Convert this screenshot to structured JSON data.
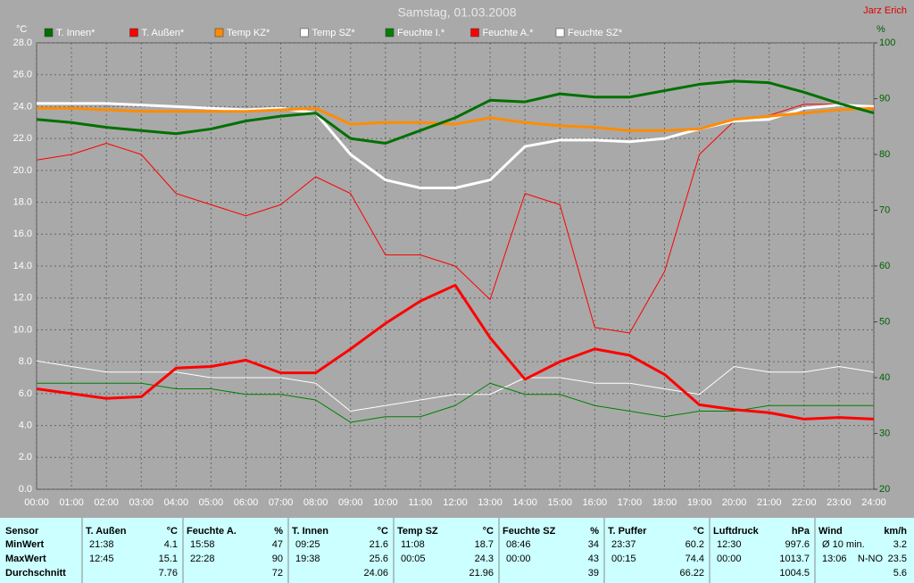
{
  "chart_data": {
    "type": "line",
    "title": "Samstag, 01.03.2008",
    "author": "Jarz Erich",
    "y_label": "°C",
    "y2_label": "%",
    "x": [
      0,
      1,
      2,
      3,
      4,
      5,
      6,
      7,
      8,
      9,
      10,
      11,
      12,
      13,
      14,
      15,
      16,
      17,
      18,
      19,
      20,
      21,
      22,
      23,
      24
    ],
    "xlim": [
      0,
      24
    ],
    "xticks": [
      {
        "value": 0,
        "label": "00:00"
      },
      {
        "value": 1,
        "label": "01:00"
      },
      {
        "value": 2,
        "label": "02:00"
      },
      {
        "value": 3,
        "label": "03:00"
      },
      {
        "value": 4,
        "label": "04:00"
      },
      {
        "value": 5,
        "label": "05:00"
      },
      {
        "value": 6,
        "label": "06:00"
      },
      {
        "value": 7,
        "label": "07:00"
      },
      {
        "value": 8,
        "label": "08:00"
      },
      {
        "value": 9,
        "label": "09:00"
      },
      {
        "value": 10,
        "label": "10:00"
      },
      {
        "value": 11,
        "label": "11:00"
      },
      {
        "value": 12,
        "label": "12:00"
      },
      {
        "value": 13,
        "label": "13:00"
      },
      {
        "value": 14,
        "label": "14:00"
      },
      {
        "value": 15,
        "label": "15:00"
      },
      {
        "value": 16,
        "label": "16:00"
      },
      {
        "value": 17,
        "label": "17:00"
      },
      {
        "value": 18,
        "label": "18:00"
      },
      {
        "value": 19,
        "label": "19:00"
      },
      {
        "value": 20,
        "label": "20:00"
      },
      {
        "value": 21,
        "label": "21:00"
      },
      {
        "value": 22,
        "label": "22:00"
      },
      {
        "value": 23,
        "label": "23:00"
      },
      {
        "value": 24,
        "label": "24:00"
      }
    ],
    "ylim": [
      0,
      28
    ],
    "yticks": [
      {
        "value": 0,
        "label": "0.0"
      },
      {
        "value": 2,
        "label": "2.0"
      },
      {
        "value": 4,
        "label": "4.0"
      },
      {
        "value": 6,
        "label": "6.0"
      },
      {
        "value": 8,
        "label": "8.0"
      },
      {
        "value": 10,
        "label": "10.0"
      },
      {
        "value": 12,
        "label": "12.0"
      },
      {
        "value": 14,
        "label": "14.0"
      },
      {
        "value": 16,
        "label": "16.0"
      },
      {
        "value": 18,
        "label": "18.0"
      },
      {
        "value": 20,
        "label": "20.0"
      },
      {
        "value": 22,
        "label": "22.0"
      },
      {
        "value": 24,
        "label": "24.0"
      },
      {
        "value": 26,
        "label": "26.0"
      },
      {
        "value": 28,
        "label": "28.0"
      }
    ],
    "y2lim": [
      20,
      100
    ],
    "y2ticks": [
      20,
      30,
      40,
      50,
      60,
      70,
      80,
      90,
      100
    ],
    "grid": true,
    "series": [
      {
        "name": "T. Innen*",
        "color": "#007000",
        "line_width": 3,
        "values": [
          23.2,
          23.0,
          22.7,
          22.5,
          22.3,
          22.6,
          23.1,
          23.4,
          23.6,
          22.0,
          21.7,
          22.5,
          23.3,
          24.4,
          24.3,
          24.8,
          24.6,
          24.6,
          25.0,
          25.4,
          25.6,
          25.5,
          24.9,
          24.2,
          23.6
        ]
      },
      {
        "name": "T. Außen*",
        "color": "#ff0000",
        "line_width": 3,
        "values": [
          6.3,
          6.0,
          5.7,
          5.8,
          7.6,
          7.7,
          8.1,
          7.3,
          7.3,
          8.8,
          10.4,
          11.8,
          12.8,
          9.5,
          6.9,
          8.0,
          8.8,
          8.4,
          7.2,
          5.3,
          5.0,
          4.8,
          4.4,
          4.5,
          4.4
        ]
      },
      {
        "name": "Temp KZ*",
        "color": "#ff8c00",
        "line_width": 3,
        "values": [
          23.9,
          23.9,
          23.8,
          23.7,
          23.7,
          23.7,
          23.7,
          23.8,
          23.9,
          22.9,
          23.0,
          23.0,
          22.9,
          23.3,
          23.0,
          22.8,
          22.7,
          22.5,
          22.5,
          22.6,
          23.2,
          23.4,
          23.6,
          23.8,
          23.9
        ]
      },
      {
        "name": "Temp SZ*",
        "color": "#ffffff",
        "line_width": 3,
        "values": [
          24.2,
          24.2,
          24.2,
          24.1,
          24.0,
          23.9,
          23.8,
          23.9,
          23.6,
          21.0,
          19.4,
          18.9,
          18.9,
          19.4,
          21.5,
          21.9,
          21.9,
          21.8,
          22.0,
          22.6,
          23.1,
          23.2,
          23.9,
          24.1,
          24.0
        ]
      },
      {
        "name": "Feuchte I.*",
        "color": "#008000",
        "line_width": 1,
        "axis": "y2",
        "values": [
          39,
          39,
          39,
          39,
          38,
          38,
          37,
          37,
          36,
          32,
          33,
          33,
          35,
          39,
          37,
          37,
          35,
          34,
          33,
          34,
          34,
          35,
          35,
          35,
          35
        ]
      },
      {
        "name": "Feuchte A.*",
        "color": "#ff0000",
        "line_width": 1,
        "axis": "y2",
        "values": [
          79,
          80,
          82,
          80,
          73,
          71,
          69,
          71,
          76,
          73,
          62,
          62,
          60,
          54,
          73,
          71,
          49,
          48,
          59,
          80,
          86,
          87,
          89,
          89,
          88
        ]
      },
      {
        "name": "Feuchte SZ*",
        "color": "#ffffff",
        "line_width": 1,
        "axis": "y2",
        "values": [
          43,
          42,
          41,
          41,
          41,
          40,
          40,
          40,
          39,
          34,
          35,
          36,
          37,
          37,
          40,
          40,
          39,
          39,
          38,
          37,
          42,
          41,
          41,
          42,
          41
        ]
      }
    ]
  },
  "table": {
    "row_labels": [
      "Sensor",
      "MinWert",
      "MaxWert",
      "Durchschnitt"
    ],
    "groups": [
      {
        "header": "T. Außen",
        "unit": "°C",
        "rows": [
          [
            "21:38",
            "4.1"
          ],
          [
            "12:45",
            "15.1"
          ],
          [
            null,
            "7.76"
          ]
        ]
      },
      {
        "header": "Feuchte A.",
        "unit": "%",
        "rows": [
          [
            "15:58",
            "47"
          ],
          [
            "22:28",
            "90"
          ],
          [
            null,
            "72"
          ]
        ]
      },
      {
        "header": "T. Innen",
        "unit": "°C",
        "rows": [
          [
            "09:25",
            "21.6"
          ],
          [
            "19:38",
            "25.6"
          ],
          [
            null,
            "24.06"
          ]
        ]
      },
      {
        "header": "Temp SZ",
        "unit": "°C",
        "rows": [
          [
            "11:08",
            "18.7"
          ],
          [
            "00:05",
            "24.3"
          ],
          [
            null,
            "21.96"
          ]
        ]
      },
      {
        "header": "Feuchte SZ",
        "unit": "%",
        "rows": [
          [
            "08:46",
            "34"
          ],
          [
            "00:00",
            "43"
          ],
          [
            null,
            "39"
          ]
        ]
      },
      {
        "header": "T. Puffer",
        "unit": "°C",
        "rows": [
          [
            "23:37",
            "60.2"
          ],
          [
            "00:15",
            "74.4"
          ],
          [
            null,
            "66.22"
          ]
        ]
      },
      {
        "header": "Luftdruck",
        "unit": "hPa",
        "rows": [
          [
            "12:30",
            "997.6"
          ],
          [
            "00:00",
            "1013.7"
          ],
          [
            null,
            "1004.5"
          ]
        ]
      },
      {
        "header": "Wind",
        "unit": "km/h",
        "rows": [
          [
            "Ø 10 min.",
            "3.2"
          ],
          [
            "13:06",
            "N-NO",
            "23.5"
          ],
          [
            null,
            "5.6"
          ]
        ]
      }
    ]
  }
}
